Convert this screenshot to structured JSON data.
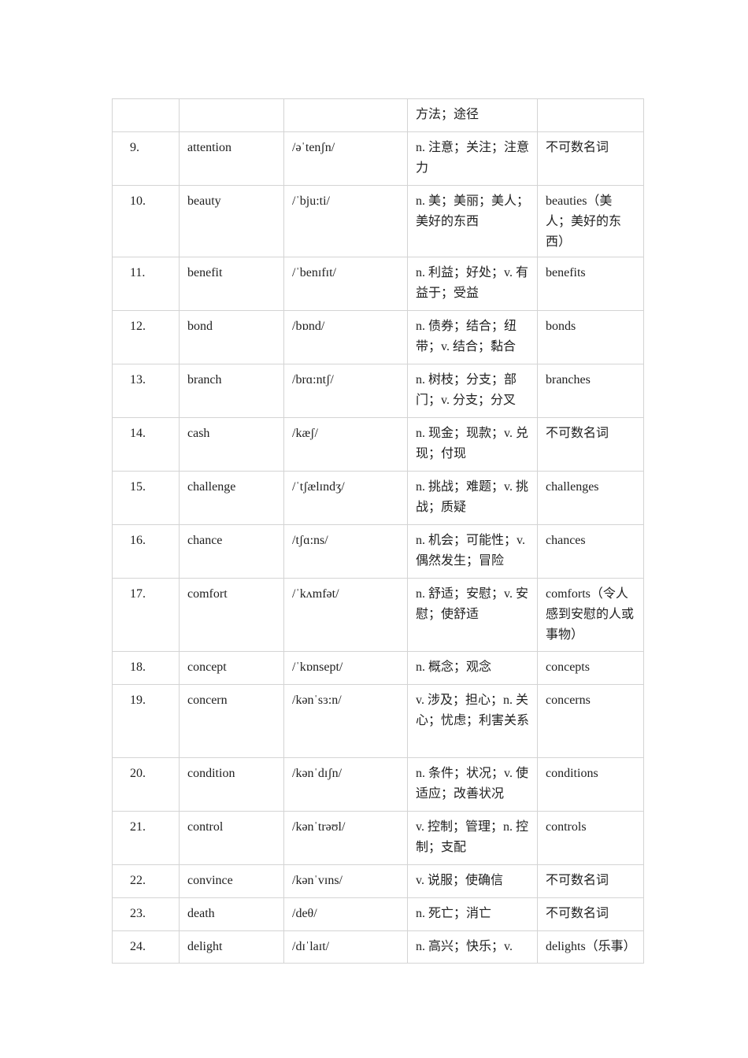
{
  "colors": {
    "background": "#ffffff",
    "border": "#d4d4d4",
    "text": "#212121"
  },
  "table": {
    "rows": [
      {
        "num": "",
        "word": "",
        "phonetic": "",
        "definition": "方法；途径",
        "note": ""
      },
      {
        "num": "9.",
        "word": "attention",
        "phonetic": "/əˈtenʃn/",
        "definition": "n. 注意；关注；注意力",
        "note": "不可数名词"
      },
      {
        "num": "10.",
        "word": "beauty",
        "phonetic": "/ˈbju:ti/",
        "definition": "n. 美；美丽；美人；美好的东西",
        "note": "beauties（美人；美好的东西）"
      },
      {
        "num": "11.",
        "word": "benefit",
        "phonetic": "/ˈbenɪfɪt/",
        "definition": "n. 利益；好处；v. 有益于；受益",
        "note": "benefits"
      },
      {
        "num": "12.",
        "word": "bond",
        "phonetic": "/bɒnd/",
        "definition": "n. 债券；结合；纽带；v. 结合；黏合",
        "note": "bonds"
      },
      {
        "num": "13.",
        "word": "branch",
        "phonetic": "/brɑ:ntʃ/",
        "definition": "n. 树枝；分支；部门；v. 分支；分叉",
        "note": "branches"
      },
      {
        "num": "14.",
        "word": "cash",
        "phonetic": "/kæʃ/",
        "definition": "n. 现金；现款；v. 兑现；付现",
        "note": "不可数名词"
      },
      {
        "num": "15.",
        "word": "challenge",
        "phonetic": "/ˈtʃælɪndʒ/",
        "definition": "n. 挑战；难题；v. 挑战；质疑",
        "note": "challenges"
      },
      {
        "num": "16.",
        "word": "chance",
        "phonetic": "/tʃɑ:ns/",
        "definition": "n. 机会；可能性；v. 偶然发生；冒险",
        "note": "chances"
      },
      {
        "num": "17.",
        "word": "comfort",
        "phonetic": "/ˈkʌmfət/",
        "definition": "n. 舒适；安慰；v. 安慰；使舒适",
        "note": "comforts（令人感到安慰的人或事物）"
      },
      {
        "num": "18.",
        "word": "concept",
        "phonetic": "/ˈkɒnsept/",
        "definition": "n. 概念；观念",
        "note": "concepts"
      },
      {
        "num": "19.",
        "word": "concern",
        "phonetic": "/kənˈsɜ:n/",
        "definition": "v. 涉及；担心；n. 关心；忧虑；利害关系",
        "note": "concerns"
      },
      {
        "num": "20.",
        "word": "condition",
        "phonetic": "/kənˈdɪʃn/",
        "definition": "n. 条件；状况；v. 使适应；改善状况",
        "note": "conditions"
      },
      {
        "num": "21.",
        "word": "control",
        "phonetic": "/kənˈtrəʊl/",
        "definition": "v. 控制；管理；n. 控制；支配",
        "note": "controls"
      },
      {
        "num": "22.",
        "word": "convince",
        "phonetic": "/kənˈvɪns/",
        "definition": "v. 说服；使确信",
        "note": "不可数名词"
      },
      {
        "num": "23.",
        "word": "death",
        "phonetic": "/deθ/",
        "definition": "n. 死亡；消亡",
        "note": "不可数名词"
      },
      {
        "num": "24.",
        "word": "delight",
        "phonetic": "/dɪˈlaɪt/",
        "definition": "n. 高兴；快乐；v.",
        "note": "delights（乐事）"
      }
    ]
  }
}
